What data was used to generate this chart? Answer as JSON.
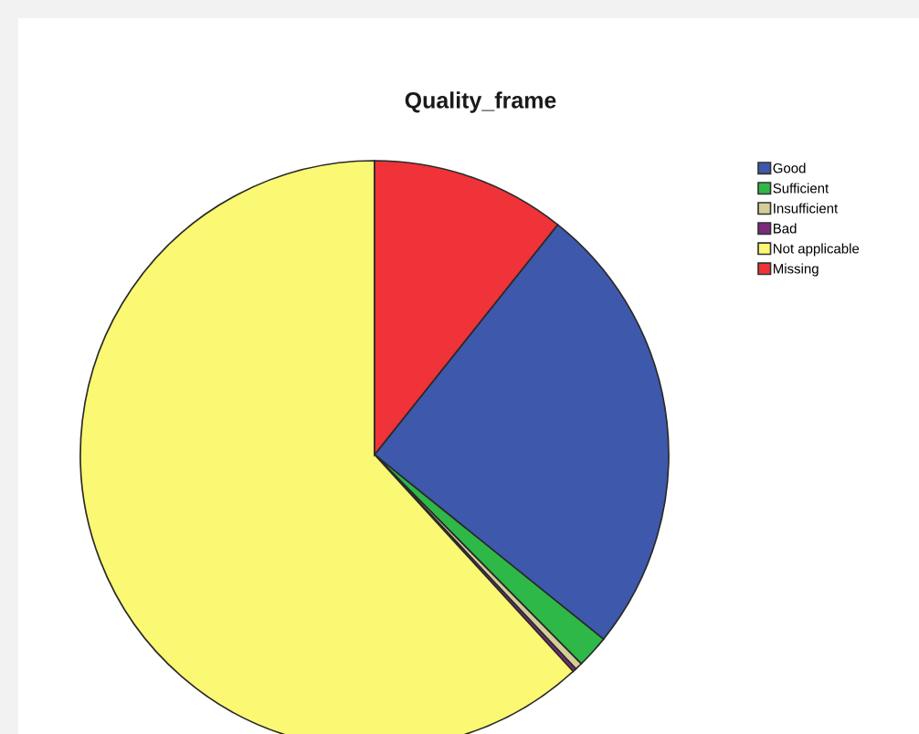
{
  "chart_data": {
    "type": "pie",
    "title": "Quality_frame",
    "categories": [
      "Good",
      "Sufficient",
      "Insufficient",
      "Bad",
      "Not applicable",
      "Missing"
    ],
    "values": [
      25.1,
      1.8,
      0.4,
      0.2,
      61.8,
      10.7
    ],
    "colors": [
      "#3e58ac",
      "#2eb848",
      "#d3ce97",
      "#7c287d",
      "#fbf873",
      "#ef3338"
    ],
    "legend": "top right"
  }
}
